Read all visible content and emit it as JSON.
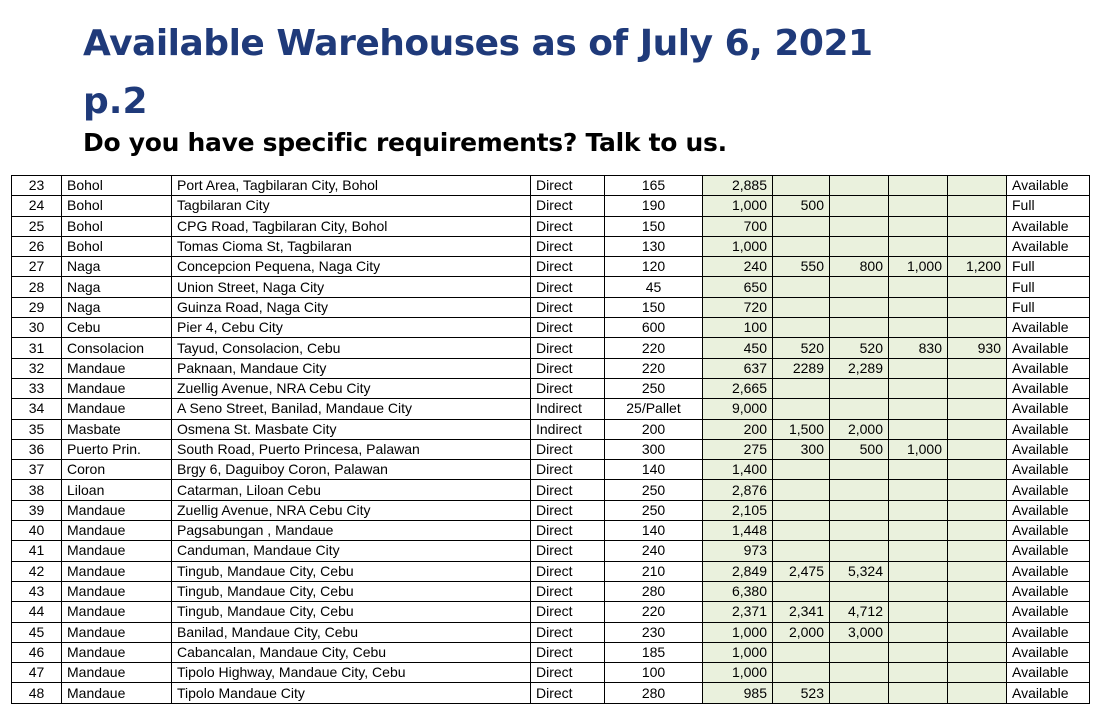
{
  "header": {
    "title": "Available Warehouses as of July 6, 2021",
    "page": "p.2",
    "subtitle": "Do you have specific requirements? Talk to us."
  },
  "colors": {
    "title": "#1f3a7a",
    "shaded": "#eaf1dd"
  },
  "rows": [
    {
      "no": "23",
      "area": "Bohol",
      "address": "Port Area, Tagbilaran City, Bohol",
      "type": "Direct",
      "size": "165",
      "v1": "2,885",
      "v2": "",
      "v3": "",
      "v4": "",
      "v5": "",
      "status": "Available"
    },
    {
      "no": "24",
      "area": "Bohol",
      "address": "Tagbilaran City",
      "type": "Direct",
      "size": "190",
      "v1": "1,000",
      "v2": "500",
      "v3": "",
      "v4": "",
      "v5": "",
      "status": "Full"
    },
    {
      "no": "25",
      "area": "Bohol",
      "address": "CPG Road, Tagbilaran City, Bohol",
      "type": "Direct",
      "size": "150",
      "v1": "700",
      "v2": "",
      "v3": "",
      "v4": "",
      "v5": "",
      "status": "Available"
    },
    {
      "no": "26",
      "area": "Bohol",
      "address": "Tomas Cioma St, Tagbilaran",
      "type": "Direct",
      "size": "130",
      "v1": "1,000",
      "v2": "",
      "v3": "",
      "v4": "",
      "v5": "",
      "status": "Available"
    },
    {
      "no": "27",
      "area": "Naga",
      "address": "Concepcion Pequena, Naga City",
      "type": "Direct",
      "size": "120",
      "v1": "240",
      "v2": "550",
      "v3": "800",
      "v4": "1,000",
      "v5": "1,200",
      "status": "Full"
    },
    {
      "no": "28",
      "area": "Naga",
      "address": "Union Street, Naga City",
      "type": "Direct",
      "size": "45",
      "v1": "650",
      "v2": "",
      "v3": "",
      "v4": "",
      "v5": "",
      "status": "Full"
    },
    {
      "no": "29",
      "area": "Naga",
      "address": "Guinza Road, Naga City",
      "type": "Direct",
      "size": "150",
      "v1": "720",
      "v2": "",
      "v3": "",
      "v4": "",
      "v5": "",
      "status": "Full"
    },
    {
      "no": "30",
      "area": "Cebu",
      "address": "Pier 4, Cebu City",
      "type": "Direct",
      "size": "600",
      "v1": "100",
      "v2": "",
      "v3": "",
      "v4": "",
      "v5": "",
      "status": "Available"
    },
    {
      "no": "31",
      "area": "Consolacion",
      "address": "Tayud, Consolacion, Cebu",
      "type": "Direct",
      "size": "220",
      "v1": "450",
      "v2": "520",
      "v3": "520",
      "v4": "830",
      "v5": "930",
      "status": "Available"
    },
    {
      "no": "32",
      "area": "Mandaue",
      "address": "Paknaan, Mandaue City",
      "type": "Direct",
      "size": "220",
      "v1": "637",
      "v2": "2289",
      "v3": "2,289",
      "v4": "",
      "v5": "",
      "status": "Available"
    },
    {
      "no": "33",
      "area": "Mandaue",
      "address": "Zuellig Avenue, NRA Cebu City",
      "type": "Direct",
      "size": "250",
      "v1": "2,665",
      "v2": "",
      "v3": "",
      "v4": "",
      "v5": "",
      "status": "Available"
    },
    {
      "no": "34",
      "area": "Mandaue",
      "address": "A Seno Street, Banilad, Mandaue City",
      "type": "Indirect",
      "size": "25/Pallet",
      "v1": "9,000",
      "v2": "",
      "v3": "",
      "v4": "",
      "v5": "",
      "status": "Available"
    },
    {
      "no": "35",
      "area": "Masbate",
      "address": "Osmena St. Masbate City",
      "type": "Indirect",
      "size": "200",
      "v1": "200",
      "v2": "1,500",
      "v3": "2,000",
      "v4": "",
      "v5": "",
      "status": "Available"
    },
    {
      "no": "36",
      "area": "Puerto Prin.",
      "address": "South Road, Puerto Princesa, Palawan",
      "type": "Direct",
      "size": "300",
      "v1": "275",
      "v2": "300",
      "v3": "500",
      "v4": "1,000",
      "v5": "",
      "status": "Available"
    },
    {
      "no": "37",
      "area": "Coron",
      "address": "Brgy 6, Daguiboy Coron, Palawan",
      "type": "Direct",
      "size": "140",
      "v1": "1,400",
      "v2": "",
      "v3": "",
      "v4": "",
      "v5": "",
      "status": "Available"
    },
    {
      "no": "38",
      "area": "Liloan",
      "address": "Catarman, Liloan Cebu",
      "type": "Direct",
      "size": "250",
      "v1": "2,876",
      "v2": "",
      "v3": "",
      "v4": "",
      "v5": "",
      "status": "Available"
    },
    {
      "no": "39",
      "area": "Mandaue",
      "address": "Zuellig Avenue, NRA Cebu City",
      "type": "Direct",
      "size": "250",
      "v1": "2,105",
      "v2": "",
      "v3": "",
      "v4": "",
      "v5": "",
      "status": "Available"
    },
    {
      "no": "40",
      "area": "Mandaue",
      "address": "Pagsabungan , Mandaue",
      "type": "Direct",
      "size": "140",
      "v1": "1,448",
      "v2": "",
      "v3": "",
      "v4": "",
      "v5": "",
      "status": "Available"
    },
    {
      "no": "41",
      "area": "Mandaue",
      "address": "Canduman, Mandaue City",
      "type": "Direct",
      "size": "240",
      "v1": "973",
      "v2": "",
      "v3": "",
      "v4": "",
      "v5": "",
      "status": "Available"
    },
    {
      "no": "42",
      "area": "Mandaue",
      "address": "Tingub, Mandaue City, Cebu",
      "type": "Direct",
      "size": "210",
      "v1": "2,849",
      "v2": "2,475",
      "v3": "5,324",
      "v4": "",
      "v5": "",
      "status": "Available"
    },
    {
      "no": "43",
      "area": "Mandaue",
      "address": "Tingub, Mandaue City, Cebu",
      "type": "Direct",
      "size": "280",
      "v1": "6,380",
      "v2": "",
      "v3": "",
      "v4": "",
      "v5": "",
      "status": "Available"
    },
    {
      "no": "44",
      "area": "Mandaue",
      "address": "Tingub, Mandaue City, Cebu",
      "type": "Direct",
      "size": "220",
      "v1": "2,371",
      "v2": "2,341",
      "v3": "4,712",
      "v4": "",
      "v5": "",
      "status": "Available"
    },
    {
      "no": "45",
      "area": "Mandaue",
      "address": "Banilad, Mandaue City, Cebu",
      "type": "Direct",
      "size": "230",
      "v1": "1,000",
      "v2": "2,000",
      "v3": "3,000",
      "v4": "",
      "v5": "",
      "status": "Available"
    },
    {
      "no": "46",
      "area": "Mandaue",
      "address": "Cabancalan, Mandaue City, Cebu",
      "type": "Direct",
      "size": "185",
      "v1": "1,000",
      "v2": "",
      "v3": "",
      "v4": "",
      "v5": "",
      "status": "Available"
    },
    {
      "no": "47",
      "area": "Mandaue",
      "address": "Tipolo Highway, Mandaue City, Cebu",
      "type": "Direct",
      "size": "100",
      "v1": "1,000",
      "v2": "",
      "v3": "",
      "v4": "",
      "v5": "",
      "status": "Available"
    },
    {
      "no": "48",
      "area": "Mandaue",
      "address": "Tipolo Mandaue City",
      "type": "Direct",
      "size": "280",
      "v1": "985",
      "v2": "523",
      "v3": "",
      "v4": "",
      "v5": "",
      "status": "Available"
    }
  ]
}
